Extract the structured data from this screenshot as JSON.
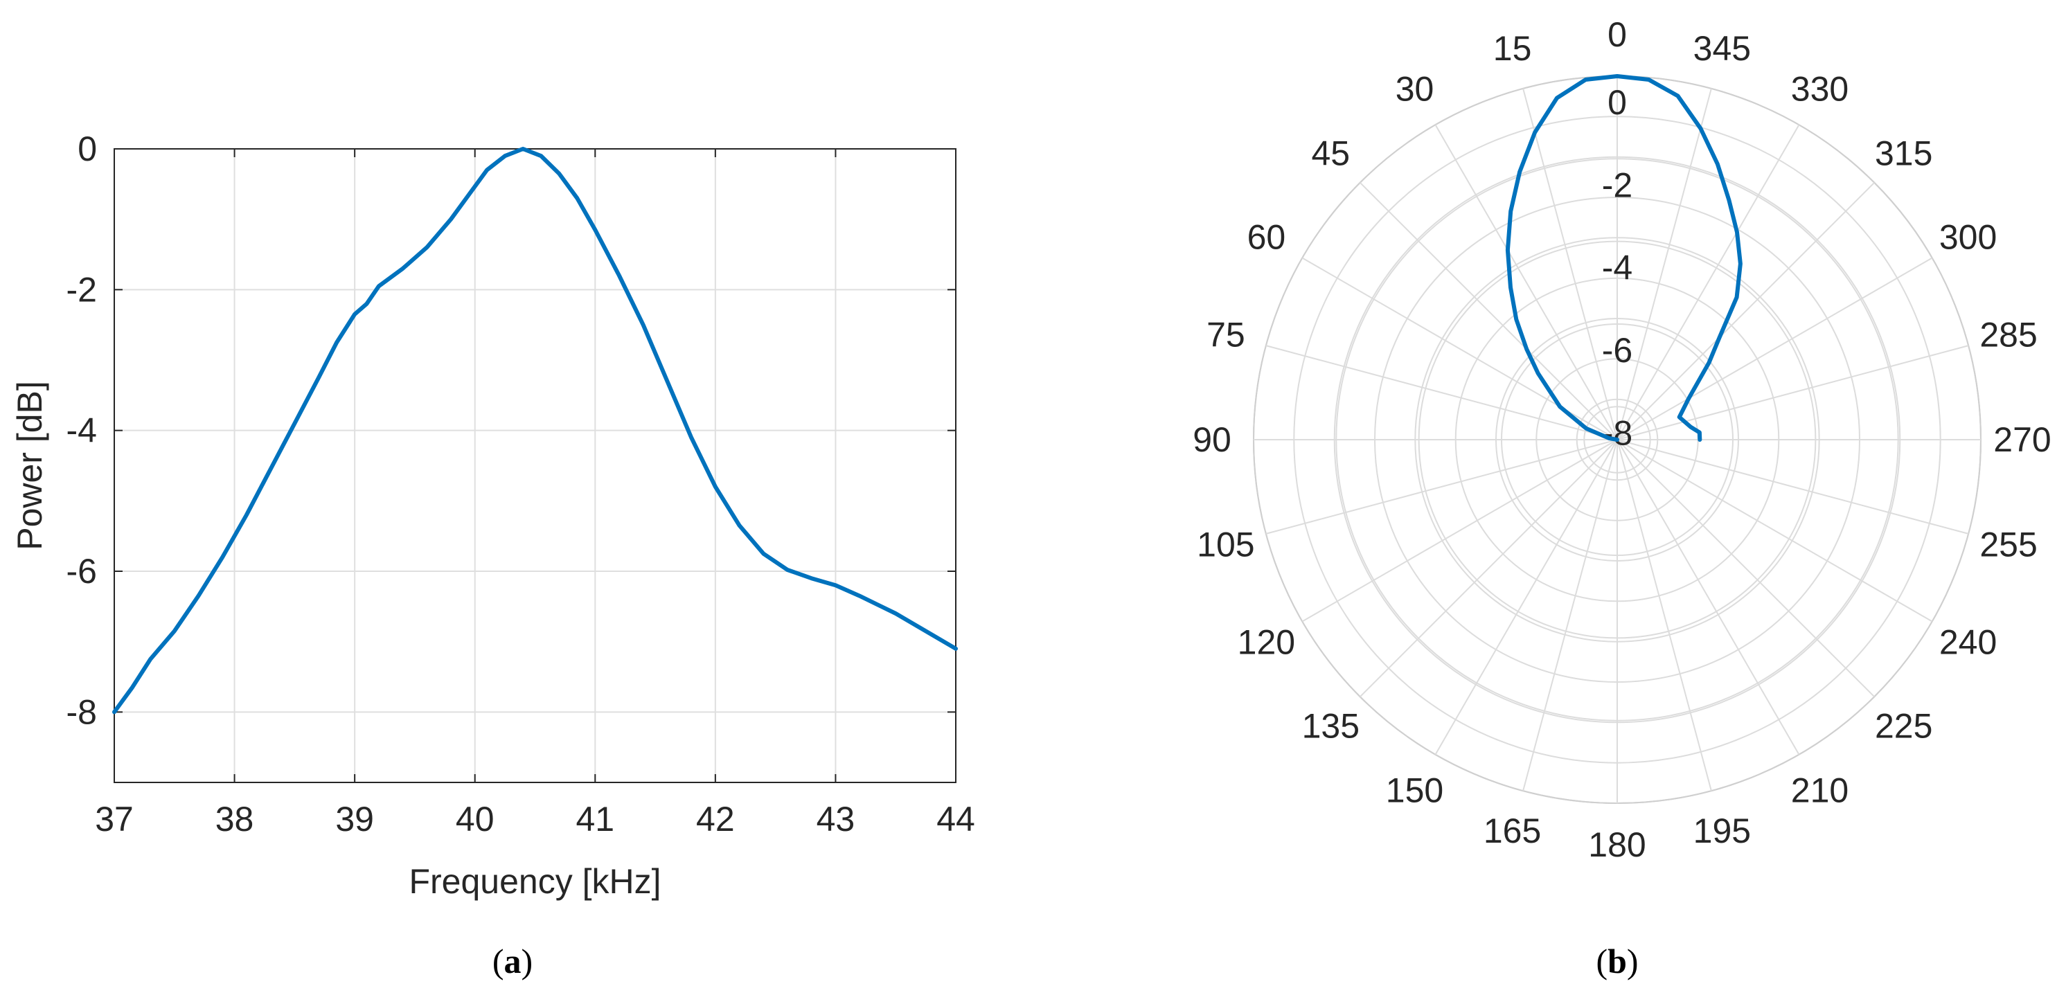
{
  "chart_data": [
    {
      "type": "line",
      "caption_letter": "a",
      "xlabel": "Frequency [kHz]",
      "ylabel": "Power [dB]",
      "xlim": [
        37,
        44
      ],
      "ylim": [
        -9,
        0
      ],
      "xticks": [
        37,
        38,
        39,
        40,
        41,
        42,
        43,
        44
      ],
      "yticks": [
        0,
        -2,
        -4,
        -6,
        -8
      ],
      "xtick_labels": [
        "37",
        "38",
        "39",
        "40",
        "41",
        "42",
        "43",
        "44"
      ],
      "ytick_labels": [
        "0",
        "-2",
        "-4",
        "-6",
        "-8"
      ],
      "grid": true,
      "color": "#0072BD",
      "x": [
        37.0,
        37.15,
        37.3,
        37.5,
        37.7,
        37.9,
        38.1,
        38.3,
        38.5,
        38.7,
        38.85,
        39.0,
        39.1,
        39.2,
        39.4,
        39.6,
        39.8,
        39.95,
        40.1,
        40.25,
        40.4,
        40.55,
        40.7,
        40.85,
        41.0,
        41.2,
        41.4,
        41.6,
        41.8,
        42.0,
        42.2,
        42.4,
        42.6,
        42.8,
        43.0,
        43.2,
        43.5,
        43.8,
        44.0
      ],
      "y": [
        -8.0,
        -7.65,
        -7.25,
        -6.85,
        -6.35,
        -5.8,
        -5.2,
        -4.55,
        -3.9,
        -3.25,
        -2.75,
        -2.35,
        -2.2,
        -1.95,
        -1.7,
        -1.4,
        -1.0,
        -0.65,
        -0.3,
        -0.1,
        0.0,
        -0.1,
        -0.35,
        -0.7,
        -1.15,
        -1.8,
        -2.5,
        -3.3,
        -4.1,
        -4.8,
        -5.35,
        -5.75,
        -5.98,
        -6.1,
        -6.2,
        -6.35,
        -6.6,
        -6.9,
        -7.1
      ]
    },
    {
      "type": "polar",
      "caption_letter": "b",
      "angle_labels": [
        "0",
        "15",
        "30",
        "45",
        "60",
        "75",
        "90",
        "105",
        "120",
        "135",
        "150",
        "165",
        "180",
        "195",
        "210",
        "225",
        "240",
        "255",
        "270",
        "285",
        "300",
        "315",
        "330",
        "345"
      ],
      "radial_ticks": [
        0,
        -2,
        -4,
        -6,
        -8
      ],
      "radial_tick_labels": [
        "0",
        "-2",
        "-4",
        "-6",
        "-8"
      ],
      "rlim": [
        -8.8,
        0
      ],
      "angular_direction": "counterclockwise",
      "zero_location": "top",
      "grid": true,
      "color": "#0072BD",
      "theta_deg": [
        90,
        80,
        70,
        60,
        50,
        45,
        40,
        35,
        30,
        25,
        20,
        15,
        10,
        5,
        0,
        -5,
        -10,
        -15,
        -20,
        -25,
        -30,
        -35,
        -40,
        -45,
        -50,
        -60,
        -70,
        -80,
        -85,
        -90
      ],
      "r_db": [
        -8.8,
        -8.6,
        -8.0,
        -7.2,
        -6.3,
        -5.7,
        -5.0,
        -4.3,
        -3.5,
        -2.7,
        -1.9,
        -1.1,
        -0.4,
        -0.05,
        0.0,
        -0.05,
        -0.35,
        -1.0,
        -1.7,
        -2.4,
        -3.0,
        -3.6,
        -4.3,
        -5.3,
        -5.9,
        -6.8,
        -7.2,
        -7.0,
        -6.8,
        -6.8
      ]
    }
  ]
}
